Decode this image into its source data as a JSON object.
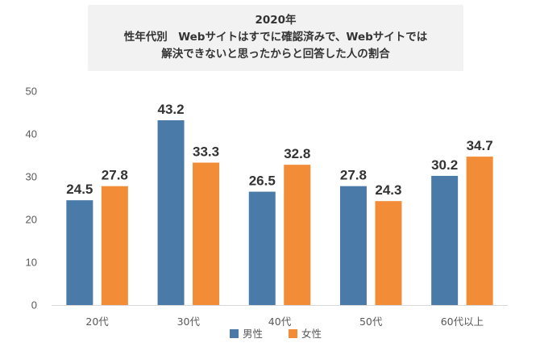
{
  "chart_data": {
    "type": "bar",
    "title": [
      "2020年",
      "性年代別　Webサイトはすでに確認済みで、Webサイトでは",
      "解決できないと思ったからと回答した人の割合"
    ],
    "categories": [
      "20代",
      "30代",
      "40代",
      "50代",
      "60代以上"
    ],
    "series": [
      {
        "name": "男性",
        "color": "#4a7aa7",
        "values": [
          24.5,
          43.2,
          26.5,
          27.8,
          30.2
        ],
        "labels": [
          "24.5",
          "43.2",
          "26.5",
          "27.8",
          "30.2"
        ]
      },
      {
        "name": "女性",
        "color": "#f28c36",
        "values": [
          27.8,
          33.3,
          32.8,
          24.3,
          34.7
        ],
        "labels": [
          "27.8",
          "33.3",
          "32.8",
          "24.3",
          "34.7"
        ]
      }
    ],
    "ylim": [
      0,
      50
    ],
    "yticks": [
      0,
      10,
      20,
      30,
      40,
      50
    ],
    "xlabel": "",
    "ylabel": "",
    "grid": false,
    "legend": "bottom"
  }
}
